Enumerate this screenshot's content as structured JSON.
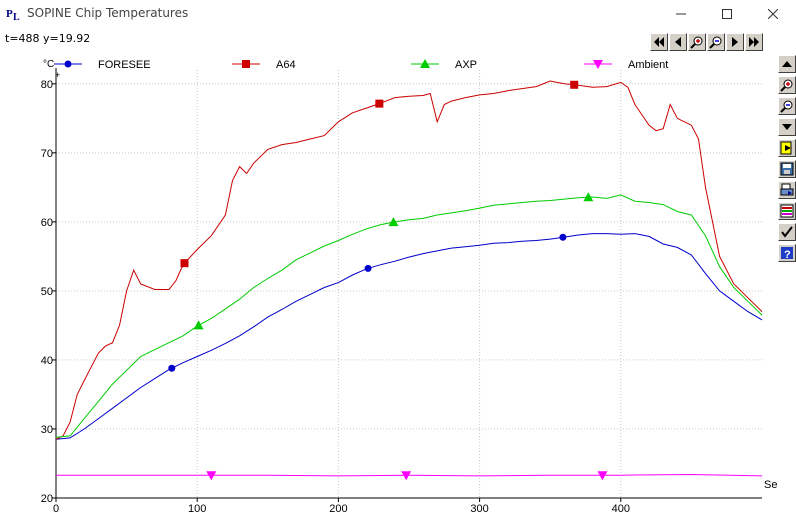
{
  "window": {
    "title": "SOPINE Chip Temperatures",
    "icon": "plot-app-icon",
    "controls": [
      "minimize-icon",
      "maximize-icon",
      "close-icon"
    ]
  },
  "readout": {
    "text": "t=488 y=19.92"
  },
  "toolbar": {
    "nav_buttons": [
      "first-icon",
      "previous-icon",
      "zoom-in-icon",
      "zoom-out-icon",
      "next-icon",
      "last-icon"
    ]
  },
  "sidebar": {
    "buttons": [
      "scroll-up-icon",
      "zoom-in-icon",
      "zoom-out-icon",
      "scroll-down-icon",
      "export-icon",
      "save-icon",
      "print-icon",
      "color-settings-icon",
      "check-icon",
      "help-icon"
    ]
  },
  "chart_data": {
    "type": "line",
    "title": "",
    "xlabel": "Sec",
    "ylabel": "°C",
    "xlim": [
      0,
      500
    ],
    "ylim": [
      20,
      82
    ],
    "x_ticks": [
      0,
      100,
      200,
      300,
      400
    ],
    "x_tick_labels": [
      "0",
      "100",
      "200",
      "300",
      "400"
    ],
    "y_ticks": [
      20,
      30,
      40,
      50,
      60,
      70,
      80
    ],
    "y_tick_labels": [
      "20",
      "30",
      "40",
      "50",
      "60",
      "70",
      "80"
    ],
    "grid": true,
    "legend_position": "top",
    "series": [
      {
        "name": "FORESEE",
        "color": "#0000cc",
        "marker": "circle",
        "marker_x": [
          82,
          221,
          359
        ],
        "x": [
          0,
          10,
          20,
          30,
          40,
          50,
          60,
          70,
          80,
          90,
          100,
          110,
          120,
          130,
          140,
          150,
          160,
          170,
          180,
          190,
          200,
          210,
          220,
          230,
          240,
          250,
          260,
          270,
          280,
          290,
          300,
          310,
          320,
          330,
          340,
          350,
          360,
          370,
          380,
          390,
          400,
          410,
          420,
          430,
          440,
          450,
          460,
          470,
          480,
          490,
          500
        ],
        "y": [
          28.5,
          28.7,
          30,
          31.5,
          33,
          34.5,
          36,
          37.3,
          38.6,
          39.6,
          40.5,
          41.4,
          42.4,
          43.5,
          44.8,
          46.2,
          47.3,
          48.5,
          49.5,
          50.5,
          51.2,
          52.3,
          53.2,
          53.8,
          54.3,
          54.9,
          55.4,
          55.8,
          56.2,
          56.4,
          56.6,
          56.9,
          57,
          57.2,
          57.3,
          57.5,
          57.8,
          58.1,
          58.3,
          58.3,
          58.2,
          58.3,
          57.9,
          56.8,
          56.3,
          55.2,
          52.5,
          50,
          48.5,
          47,
          45.8
        ]
      },
      {
        "name": "A64",
        "color": "#cc0000",
        "marker": "square",
        "marker_x": [
          91,
          229,
          367
        ],
        "x": [
          0,
          5,
          10,
          15,
          20,
          25,
          30,
          35,
          40,
          45,
          50,
          55,
          60,
          70,
          80,
          85,
          90,
          100,
          110,
          120,
          125,
          130,
          135,
          140,
          145,
          150,
          160,
          170,
          180,
          190,
          200,
          210,
          220,
          230,
          240,
          250,
          260,
          265,
          270,
          275,
          280,
          290,
          300,
          310,
          320,
          330,
          340,
          350,
          360,
          370,
          380,
          390,
          400,
          405,
          410,
          420,
          425,
          430,
          435,
          440,
          445,
          450,
          455,
          460,
          470,
          480,
          490,
          500
        ],
        "y": [
          28.5,
          29,
          31,
          35,
          37,
          39,
          41,
          42,
          42.5,
          45,
          50,
          53,
          51,
          50.2,
          50.2,
          51.5,
          53.8,
          56,
          58,
          61,
          66,
          68,
          67,
          68.5,
          69.5,
          70.5,
          71.2,
          71.5,
          72,
          72.5,
          74.5,
          75.8,
          76.5,
          77.2,
          78,
          78.2,
          78.3,
          78.6,
          74.5,
          77,
          77.5,
          78,
          78.4,
          78.6,
          79,
          79.3,
          79.6,
          80.4,
          80,
          79.8,
          79.5,
          79.6,
          80.2,
          79.5,
          77,
          74,
          73.2,
          73.5,
          77,
          75,
          74.5,
          74,
          72,
          65,
          55,
          51,
          49,
          47
        ]
      },
      {
        "name": "AXP",
        "color": "#00cc00",
        "marker": "triangle-up",
        "marker_x": [
          101,
          239,
          377
        ],
        "x": [
          0,
          10,
          20,
          30,
          40,
          50,
          60,
          70,
          80,
          90,
          100,
          110,
          120,
          130,
          140,
          150,
          160,
          170,
          180,
          190,
          200,
          210,
          220,
          230,
          240,
          250,
          260,
          270,
          280,
          290,
          300,
          310,
          320,
          330,
          340,
          350,
          360,
          370,
          380,
          390,
          400,
          410,
          420,
          430,
          440,
          450,
          460,
          470,
          480,
          490,
          500
        ],
        "y": [
          28.8,
          29,
          31.5,
          34,
          36.5,
          38.5,
          40.5,
          41.5,
          42.5,
          43.5,
          44.9,
          46,
          47.4,
          48.8,
          50.5,
          51.8,
          53,
          54.5,
          55.5,
          56.5,
          57.3,
          58.2,
          59,
          59.6,
          60,
          60.3,
          60.5,
          61,
          61.3,
          61.6,
          62,
          62.4,
          62.6,
          62.8,
          63,
          63.1,
          63.3,
          63.5,
          63.6,
          63.4,
          63.9,
          63,
          62.8,
          62.5,
          61.5,
          61,
          58,
          53.5,
          50.5,
          48.5,
          46.5
        ]
      },
      {
        "name": "Ambient",
        "color": "#ff00ff",
        "marker": "triangle-down",
        "marker_x": [
          110,
          248,
          387
        ],
        "x": [
          0,
          50,
          100,
          150,
          200,
          250,
          300,
          350,
          400,
          450,
          500
        ],
        "y": [
          23.3,
          23.3,
          23.3,
          23.3,
          23.2,
          23.3,
          23.2,
          23.3,
          23.3,
          23.4,
          23.2
        ]
      }
    ]
  }
}
